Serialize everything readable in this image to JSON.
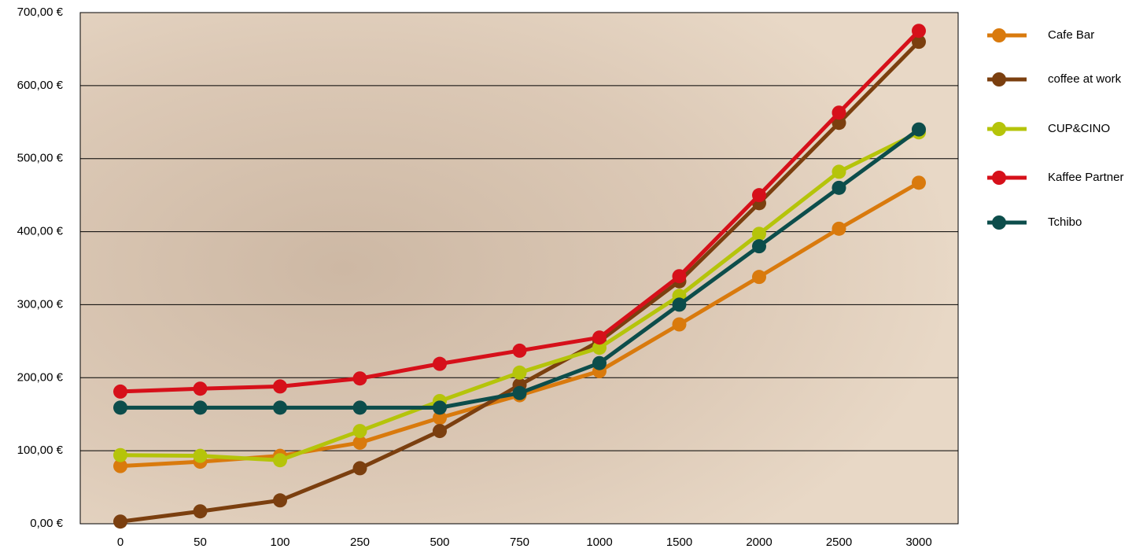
{
  "chart_data": {
    "type": "line",
    "categories": [
      "0",
      "50",
      "100",
      "250",
      "500",
      "750",
      "1000",
      "1500",
      "2000",
      "2500",
      "3000"
    ],
    "series": [
      {
        "name": "Cafe Bar",
        "color": "#d97a0d",
        "values": [
          79,
          85,
          93,
          111,
          145,
          176,
          209,
          273,
          338,
          404,
          467
        ]
      },
      {
        "name": "coffee at work",
        "color": "#7b3f0f",
        "values": [
          3,
          17,
          32,
          76,
          127,
          190,
          250,
          332,
          439,
          549,
          660
        ]
      },
      {
        "name": "CUP&CINO",
        "color": "#b5c40a",
        "values": [
          94,
          93,
          87,
          127,
          168,
          207,
          241,
          312,
          397,
          482,
          536
        ]
      },
      {
        "name": "Kaffee Partner",
        "color": "#d6101a",
        "values": [
          181,
          185,
          188,
          199,
          219,
          237,
          255,
          339,
          450,
          563,
          675
        ]
      },
      {
        "name": "Tchibo",
        "color": "#0c4d4b",
        "values": [
          159,
          159,
          159,
          159,
          159,
          179,
          220,
          300,
          380,
          460,
          540
        ]
      }
    ],
    "ylim": [
      0,
      700
    ],
    "yticks": [
      {
        "value": 0,
        "label": "0,00 €"
      },
      {
        "value": 100,
        "label": "100,00 €"
      },
      {
        "value": 200,
        "label": "200,00 €"
      },
      {
        "value": 300,
        "label": "300,00 €"
      },
      {
        "value": 400,
        "label": "400,00 €"
      },
      {
        "value": 500,
        "label": "500,00 €"
      },
      {
        "value": 600,
        "label": "600,00 €"
      },
      {
        "value": 700,
        "label": "700,00 €"
      }
    ],
    "grid": true,
    "legend": "right"
  }
}
